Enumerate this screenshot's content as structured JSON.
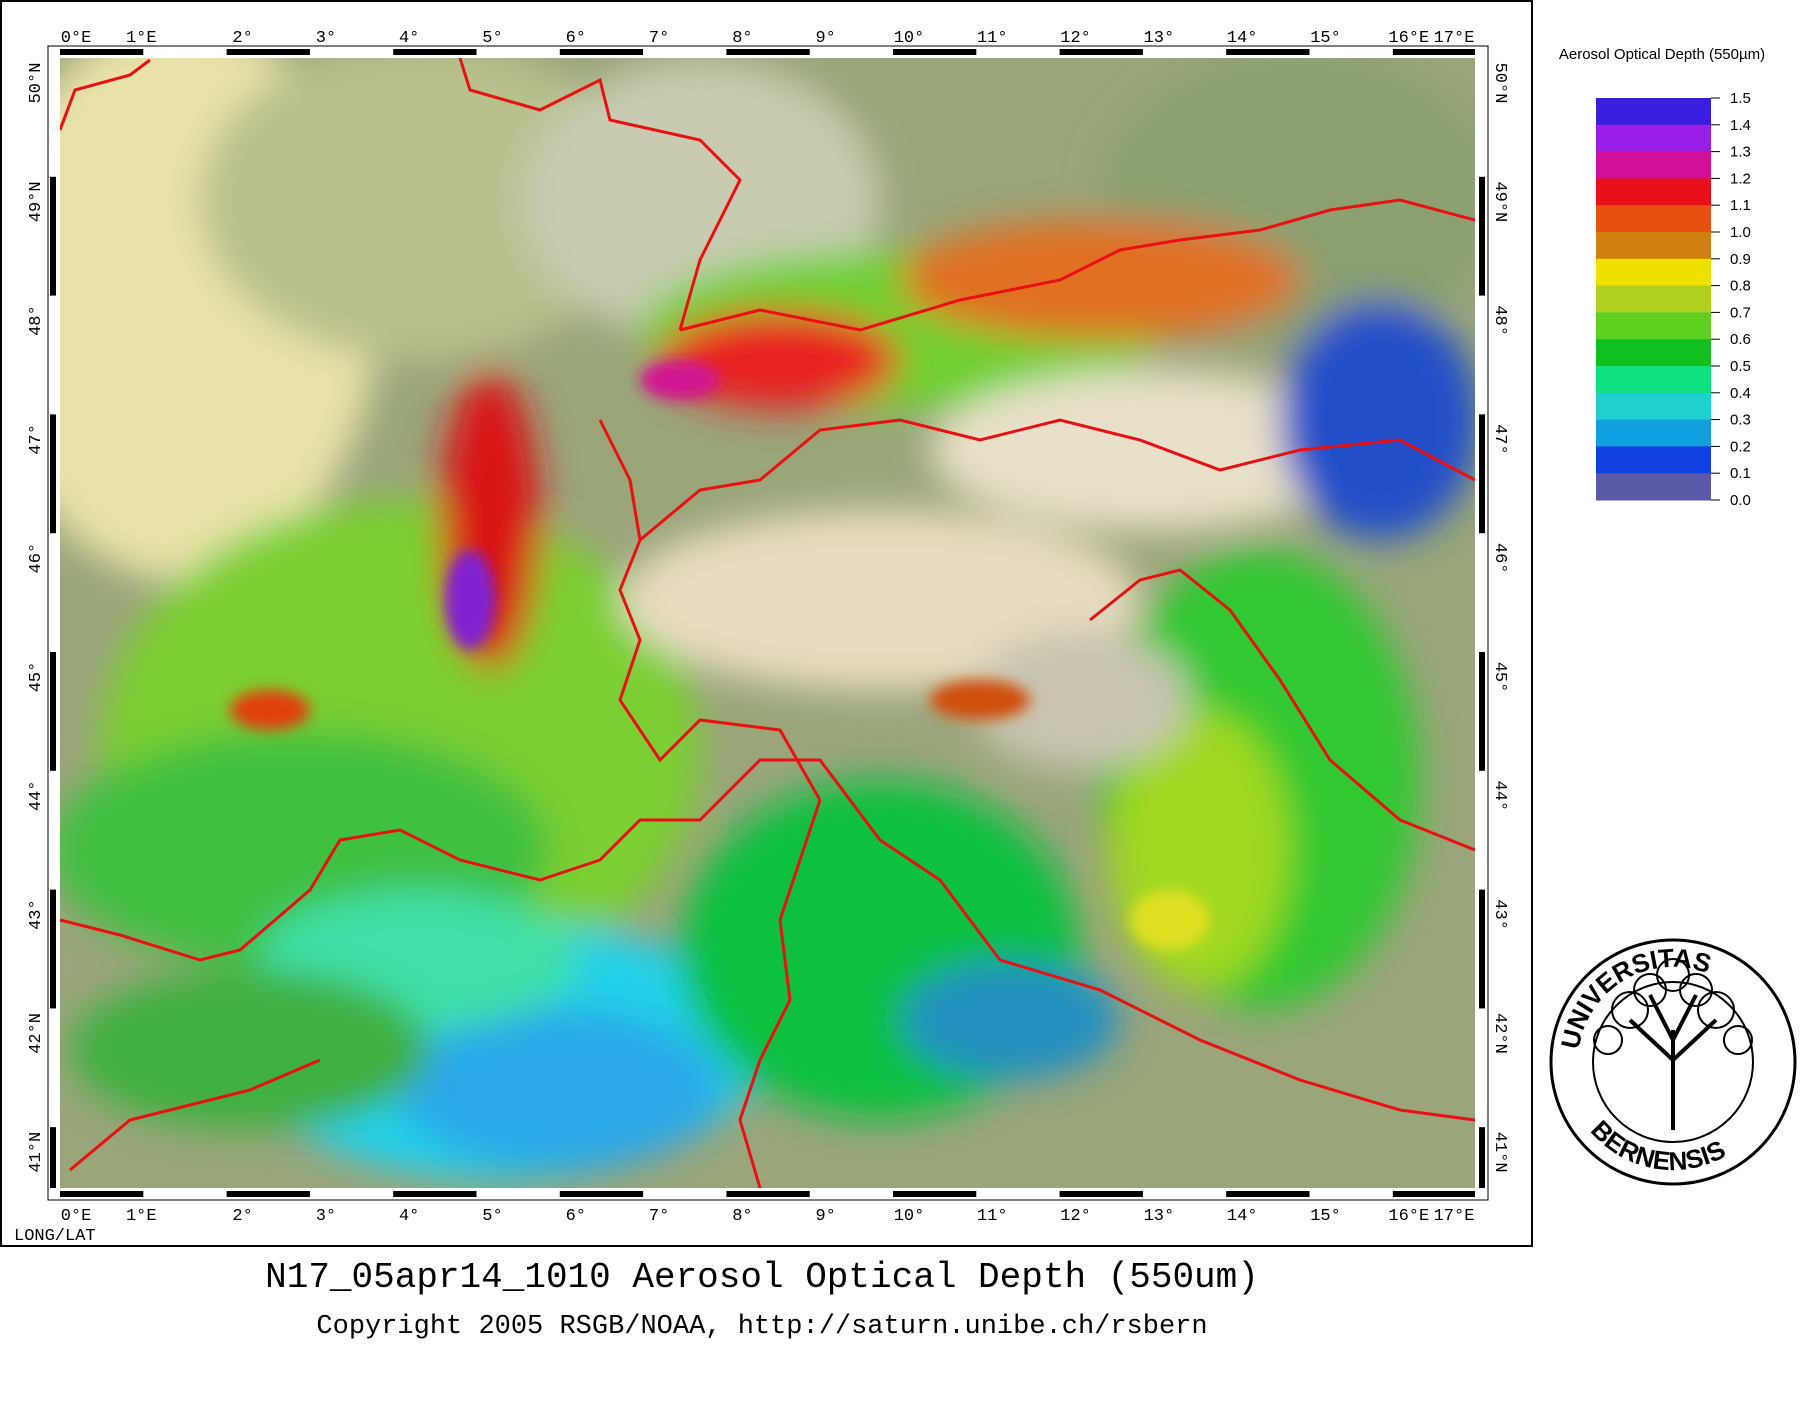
{
  "map": {
    "lon_labels": [
      "0°E",
      "1°E",
      "2°",
      "3°",
      "4°",
      "5°",
      "6°",
      "7°",
      "8°",
      "9°",
      "10°",
      "11°",
      "12°",
      "13°",
      "14°",
      "15°",
      "16°E",
      "17°E"
    ],
    "lat_labels": [
      "50°N",
      "49°N",
      "48°",
      "47°",
      "46°",
      "45°",
      "44°",
      "43°",
      "42°N",
      "41°N"
    ],
    "corner_label": "LONG/LAT"
  },
  "legend": {
    "title": "Aerosol Optical Depth (550µm)",
    "labels": [
      "1.5",
      "1.4",
      "1.3",
      "1.2",
      "1.1",
      "1.0",
      "0.9",
      "0.8",
      "0.7",
      "0.6",
      "0.5",
      "0.4",
      "0.3",
      "0.2",
      "0.1",
      "0.0"
    ],
    "colors": [
      "#3a1ee0",
      "#9a1ee8",
      "#d0109a",
      "#e8101a",
      "#e85010",
      "#d08010",
      "#f0e000",
      "#b0d020",
      "#60d020",
      "#10c020",
      "#10e080",
      "#20d0d0",
      "#10a0e0",
      "#1040e0",
      "#5a5aa8"
    ]
  },
  "seal": {
    "top": "UNIVERSITAS",
    "bottom": "BERNENSIS"
  },
  "footer": {
    "title": "N17_05apr14_1010 Aerosol Optical Depth (550um)",
    "copyright": "Copyright 2005 RSGB/NOAA, http://saturn.unibe.ch/rsbern"
  }
}
